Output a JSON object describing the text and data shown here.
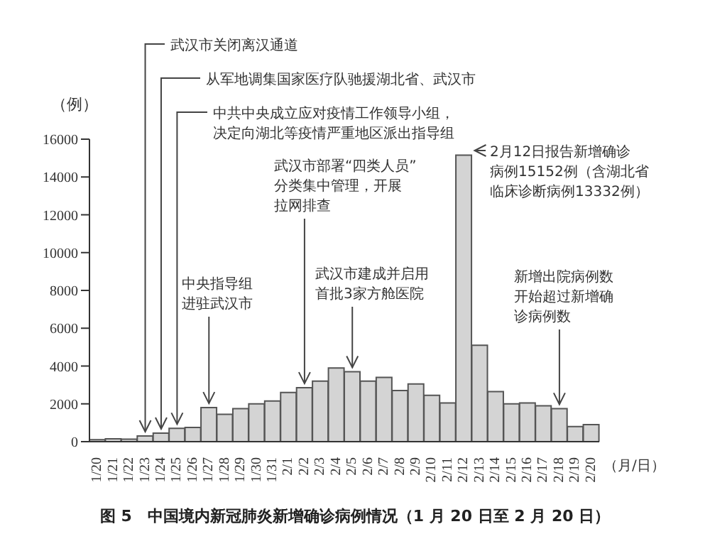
{
  "chart_data": {
    "type": "bar",
    "title": "图 5　中国境内新冠肺炎新增确诊病例情况（1 月 20 日至 2 月 20 日）",
    "ylabel": "（例）",
    "xlabel": "（月/日）",
    "categories": [
      "1/20",
      "1/21",
      "1/22",
      "1/23",
      "1/24",
      "1/25",
      "1/26",
      "1/27",
      "1/28",
      "1/29",
      "1/30",
      "1/31",
      "2/1",
      "2/2",
      "2/3",
      "2/4",
      "2/5",
      "2/6",
      "2/7",
      "2/8",
      "2/9",
      "2/10",
      "2/11",
      "2/12",
      "2/13",
      "2/14",
      "2/15",
      "2/16",
      "2/17",
      "2/18",
      "2/19",
      "2/20"
    ],
    "values": [
      100,
      150,
      130,
      300,
      450,
      700,
      750,
      1800,
      1450,
      1750,
      2000,
      2150,
      2600,
      2850,
      3200,
      3900,
      3700,
      3200,
      3400,
      2700,
      3050,
      2450,
      2050,
      15152,
      5100,
      2650,
      2000,
      2050,
      1900,
      1750,
      800,
      900
    ],
    "color": "#d4d4d4",
    "ylim": [
      0,
      16000
    ],
    "yticks": [
      0,
      2000,
      4000,
      6000,
      8000,
      10000,
      12000,
      14000,
      16000
    ],
    "annotations": [
      {
        "text": "武汉市关闭离汉通道",
        "x": "1/23",
        "y": 300
      },
      {
        "text": "从军地调集国家医疗队驰援湖北省、武汉市",
        "x": "1/24",
        "y": 450
      },
      {
        "text": "中共中央成立应对疫情工作领导小组，决定向湖北等疫情严重地区派出指导组",
        "x": "1/25",
        "y": 700
      },
      {
        "text": "中央指导组进驻武汉市",
        "x": "1/27",
        "y": 1800
      },
      {
        "text": "武汉市部署“四类人员”分类集中管理，开展拉网排查",
        "x": "2/2",
        "y": 2850
      },
      {
        "text": "武汉市建成并启用首批3家方舱医院",
        "x": "2/5",
        "y": 3700
      },
      {
        "text": "2月12日报告新增确诊病例15152例（含湖北省临床诊断病例13332例）",
        "x": "2/12",
        "y": 15152
      },
      {
        "text": "新增出院病例数开始超过新增确诊病例数",
        "x": "2/18",
        "y": 1750
      }
    ]
  }
}
